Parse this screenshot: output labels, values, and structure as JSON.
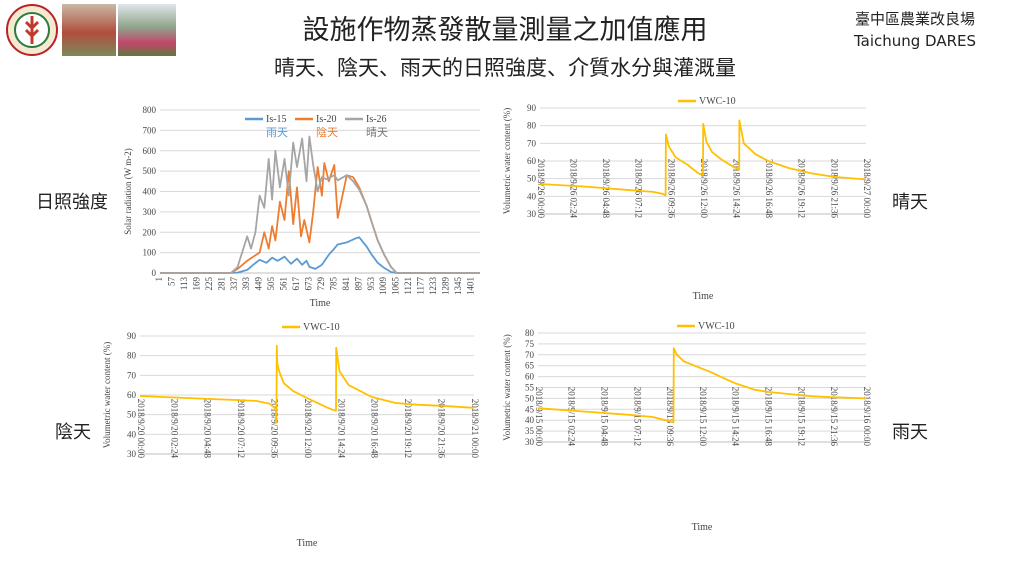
{
  "header": {
    "title": "設施作物蒸發散量測量之加值應用",
    "subtitle": "晴天、陰天、雨天的日照強度、介質水分與灌溉量",
    "org_line1": "臺中區農業改良場",
    "org_line2": "Taichung DARES"
  },
  "side_labels": {
    "radiation": "日照強度",
    "sunny": "晴天",
    "cloudy": "陰天",
    "rainy": "雨天"
  },
  "colors": {
    "is15": "#5b9bd5",
    "is20": "#ed7d31",
    "is26": "#a5a5a5",
    "vwc": "#ffc000"
  },
  "chart_data": [
    {
      "type": "line",
      "ylabel": "Solar radiation (W m-2)",
      "xlabel": "Time",
      "ylim": [
        0,
        800
      ],
      "yticks": [
        0,
        100,
        200,
        300,
        400,
        500,
        600,
        700,
        800
      ],
      "xlim": [
        1,
        1440
      ],
      "xticks": [
        1,
        57,
        113,
        169,
        225,
        281,
        337,
        393,
        449,
        505,
        561,
        617,
        673,
        729,
        785,
        841,
        897,
        953,
        1009,
        1065,
        1121,
        1177,
        1233,
        1289,
        1345,
        1401
      ],
      "grid": "horizontal",
      "legend": "top",
      "series": [
        {
          "name": "Is-15",
          "annotation": "雨天",
          "x": [
            1,
            300,
            350,
            393,
            420,
            449,
            480,
            505,
            530,
            561,
            590,
            617,
            640,
            660,
            673,
            700,
            729,
            760,
            785,
            800,
            841,
            880,
            897,
            930,
            953,
            980,
            1009,
            1040,
            1065,
            1440
          ],
          "y": [
            0,
            0,
            2,
            15,
            40,
            65,
            50,
            75,
            60,
            80,
            45,
            70,
            40,
            60,
            30,
            20,
            40,
            90,
            120,
            140,
            150,
            170,
            175,
            130,
            90,
            50,
            25,
            5,
            0,
            0
          ]
        },
        {
          "name": "Is-20",
          "annotation": "陰天",
          "x": [
            1,
            320,
            350,
            393,
            420,
            449,
            470,
            490,
            505,
            520,
            540,
            561,
            580,
            600,
            617,
            635,
            650,
            673,
            690,
            710,
            729,
            740,
            760,
            785,
            800,
            841,
            870,
            897,
            930,
            953,
            980,
            1009,
            1040,
            1065,
            1440
          ],
          "y": [
            0,
            0,
            20,
            60,
            80,
            100,
            200,
            120,
            230,
            160,
            350,
            260,
            500,
            240,
            420,
            180,
            260,
            150,
            300,
            520,
            380,
            540,
            450,
            530,
            270,
            480,
            470,
            420,
            330,
            250,
            160,
            90,
            30,
            0,
            0
          ]
        },
        {
          "name": "Is-26",
          "annotation": "晴天",
          "x": [
            1,
            320,
            350,
            393,
            410,
            430,
            449,
            470,
            490,
            505,
            520,
            540,
            561,
            580,
            600,
            617,
            640,
            660,
            673,
            690,
            710,
            729,
            750,
            785,
            800,
            841,
            870,
            897,
            930,
            953,
            980,
            1009,
            1040,
            1065,
            1440
          ],
          "y": [
            0,
            0,
            30,
            180,
            120,
            200,
            380,
            320,
            560,
            360,
            600,
            420,
            560,
            380,
            640,
            520,
            660,
            450,
            670,
            530,
            400,
            470,
            460,
            480,
            455,
            480,
            450,
            410,
            330,
            250,
            160,
            90,
            30,
            0,
            0
          ]
        }
      ]
    },
    {
      "type": "line",
      "condition": "晴天",
      "ylabel": "Volumetric water content (%)",
      "xlabel": "Time",
      "ylim": [
        30,
        90
      ],
      "yticks": [
        30,
        40,
        50,
        60,
        70,
        80,
        90
      ],
      "xlim": [
        0,
        1440
      ],
      "xticks": [
        0,
        144,
        288,
        432,
        576,
        720,
        864,
        1008,
        1152,
        1296,
        1440
      ],
      "xtick_labels": [
        "2018/9/26 00:00",
        "2018/9/26 02:24",
        "2018/9/26 04:48",
        "2018/9/26 07:12",
        "2018/9/26 09:36",
        "2018/9/26 12:00",
        "2018/9/26 14:24",
        "2018/9/26 16:48",
        "2018/9/26 19:12",
        "2018/9/26 21:36",
        "2018/9/27 00:00"
      ],
      "grid": "horizontal",
      "legend": "top",
      "series": [
        {
          "name": "VWC-10",
          "x": [
            0,
            200,
            400,
            500,
            540,
            555,
            556,
            570,
            600,
            650,
            700,
            720,
            721,
            735,
            760,
            800,
            850,
            880,
            881,
            900,
            950,
            1008,
            1100,
            1200,
            1300,
            1440
          ],
          "y": [
            47,
            45.5,
            43.5,
            42.5,
            41.5,
            40.5,
            75,
            68,
            62,
            58,
            53,
            52,
            81,
            71,
            65,
            61,
            57,
            55,
            83,
            70,
            64,
            60,
            56,
            53,
            51,
            49.5
          ]
        }
      ]
    },
    {
      "type": "line",
      "condition": "陰天",
      "ylabel": "Volumetric water content (%)",
      "xlabel": "Time",
      "ylim": [
        30,
        90
      ],
      "yticks": [
        30,
        40,
        50,
        60,
        70,
        80,
        90
      ],
      "xlim": [
        0,
        1440
      ],
      "xticks": [
        0,
        144,
        288,
        432,
        576,
        720,
        864,
        1008,
        1152,
        1296,
        1440
      ],
      "xtick_labels": [
        "2018/9/20 00:00",
        "2018/9/20 02:24",
        "2018/9/20 04:48",
        "2018/9/20 07:12",
        "2018/9/20 09:36",
        "2018/9/20 12:00",
        "2018/9/20 14:24",
        "2018/9/20 16:48",
        "2018/9/20 19:12",
        "2018/9/20 21:36",
        "2018/9/21 00:00"
      ],
      "grid": "horizontal",
      "legend": "top",
      "series": [
        {
          "name": "VWC-10",
          "x": [
            0,
            200,
            400,
            500,
            560,
            585,
            588,
            590,
            592,
            600,
            620,
            660,
            720,
            800,
            830,
            845,
            846,
            860,
            900,
            1000,
            1100,
            1200,
            1300,
            1440
          ],
          "y": [
            59.5,
            58.5,
            57.5,
            57,
            55.5,
            53,
            46,
            85,
            76,
            72,
            66,
            62,
            58.5,
            54,
            52.5,
            52,
            84,
            72,
            65,
            59,
            56,
            55,
            54.5,
            53.5
          ]
        }
      ]
    },
    {
      "type": "line",
      "condition": "雨天",
      "ylabel": "Volumetric water content (%)",
      "xlabel": "Time",
      "ylim": [
        30,
        80
      ],
      "yticks": [
        30,
        35,
        40,
        45,
        50,
        55,
        60,
        65,
        70,
        75,
        80
      ],
      "xlim": [
        0,
        1440
      ],
      "xticks": [
        0,
        144,
        288,
        432,
        576,
        720,
        864,
        1008,
        1152,
        1296,
        1440
      ],
      "xtick_labels": [
        "2018/9/15 00:00",
        "2018/9/15 02:24",
        "2018/9/15 04:48",
        "2018/9/15 07:12",
        "2018/9/15 09:36",
        "2018/9/15 12:00",
        "2018/9/15 14:24",
        "2018/9/15 16:48",
        "2018/9/15 19:12",
        "2018/9/15 21:36",
        "2018/9/16 00:00"
      ],
      "grid": "horizontal",
      "legend": "top",
      "series": [
        {
          "name": "VWC-10",
          "x": [
            0,
            200,
            400,
            500,
            560,
            595,
            596,
            610,
            640,
            700,
            760,
            800,
            864,
            950,
            1008,
            1100,
            1200,
            1300,
            1440
          ],
          "y": [
            45.5,
            44,
            42.5,
            41.5,
            40,
            39,
            73,
            70,
            67,
            64.5,
            62,
            60,
            57,
            54,
            53,
            52,
            51,
            50.5,
            50
          ]
        }
      ]
    }
  ]
}
